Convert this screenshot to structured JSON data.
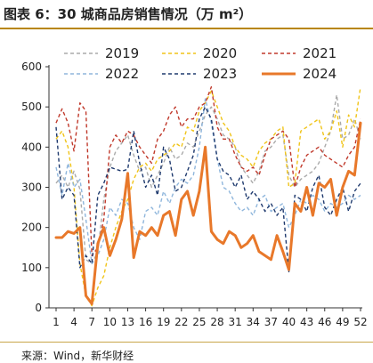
{
  "figure": {
    "title": "图表 6：30 城商品房销售情况（万 m²）",
    "source": "来源：Wind，新华财经"
  },
  "chart_data": {
    "type": "line",
    "title": "",
    "xlabel": "",
    "ylabel": "",
    "x": [
      1,
      2,
      3,
      4,
      5,
      6,
      7,
      8,
      9,
      10,
      11,
      12,
      13,
      14,
      15,
      16,
      17,
      18,
      19,
      20,
      21,
      22,
      23,
      24,
      25,
      26,
      27,
      28,
      29,
      30,
      31,
      32,
      33,
      34,
      35,
      36,
      37,
      38,
      39,
      40,
      41,
      42,
      43,
      44,
      45,
      46,
      47,
      48,
      49,
      50,
      51,
      52
    ],
    "x_ticks": [
      1,
      4,
      7,
      10,
      13,
      16,
      19,
      22,
      25,
      28,
      31,
      34,
      37,
      40,
      43,
      46,
      49,
      52
    ],
    "y_ticks": [
      0,
      100,
      200,
      300,
      400,
      500,
      600
    ],
    "xlim": [
      1,
      52
    ],
    "ylim": [
      0,
      600
    ],
    "grid": false,
    "legend_position": "top",
    "series": [
      {
        "name": "2019",
        "color": "#aaaaaa",
        "style": "dashed",
        "width": 1.4,
        "values": [
          310,
          330,
          300,
          340,
          295,
          120,
          110,
          140,
          270,
          350,
          390,
          410,
          430,
          380,
          340,
          350,
          300,
          330,
          360,
          400,
          370,
          380,
          410,
          400,
          440,
          480,
          500,
          470,
          430,
          420,
          400,
          350,
          330,
          310,
          340,
          390,
          400,
          420,
          430,
          330,
          300,
          320,
          330,
          340,
          360,
          400,
          440,
          530,
          420,
          430,
          470,
          420
        ]
      },
      {
        "name": "2020",
        "color": "#f0c419",
        "style": "dashed",
        "width": 1.4,
        "values": [
          420,
          440,
          400,
          300,
          110,
          30,
          5,
          50,
          80,
          150,
          200,
          240,
          270,
          320,
          350,
          360,
          340,
          370,
          380,
          390,
          410,
          400,
          450,
          440,
          490,
          510,
          540,
          500,
          460,
          440,
          400,
          380,
          370,
          350,
          390,
          410,
          420,
          440,
          450,
          300,
          310,
          440,
          450,
          460,
          470,
          420,
          440,
          490,
          400,
          480,
          450,
          550
        ]
      },
      {
        "name": "2021",
        "color": "#c0392b",
        "style": "dashed",
        "width": 1.4,
        "values": [
          460,
          495,
          460,
          390,
          510,
          490,
          130,
          150,
          220,
          400,
          430,
          410,
          440,
          430,
          400,
          380,
          360,
          420,
          440,
          480,
          500,
          450,
          470,
          470,
          500,
          510,
          550,
          450,
          420,
          420,
          380,
          350,
          340,
          350,
          330,
          380,
          420,
          430,
          440,
          420,
          300,
          350,
          380,
          390,
          400,
          380,
          370,
          360,
          350,
          380,
          400,
          470
        ]
      },
      {
        "name": "2022",
        "color": "#8fb6dc",
        "style": "dashed",
        "width": 1.4,
        "values": [
          350,
          280,
          360,
          300,
          320,
          220,
          110,
          130,
          170,
          250,
          230,
          270,
          260,
          200,
          170,
          240,
          250,
          230,
          290,
          260,
          300,
          320,
          310,
          330,
          400,
          520,
          460,
          370,
          300,
          290,
          260,
          240,
          250,
          230,
          270,
          280,
          240,
          250,
          260,
          200,
          230,
          270,
          260,
          280,
          270,
          240,
          260,
          250,
          260,
          280,
          270,
          280
        ]
      },
      {
        "name": "2023",
        "color": "#1f3a6e",
        "style": "dashed",
        "width": 1.4,
        "values": [
          450,
          270,
          300,
          280,
          100,
          130,
          110,
          280,
          310,
          350,
          345,
          340,
          345,
          440,
          360,
          300,
          330,
          280,
          400,
          370,
          290,
          300,
          340,
          380,
          470,
          500,
          470,
          370,
          340,
          330,
          300,
          330,
          270,
          290,
          270,
          240,
          260,
          230,
          250,
          90,
          280,
          270,
          240,
          300,
          330,
          250,
          230,
          270,
          300,
          240,
          290,
          310
        ]
      },
      {
        "name": "2024",
        "color": "#e8782a",
        "style": "solid",
        "width": 3,
        "values": [
          175,
          175,
          190,
          185,
          200,
          30,
          10,
          160,
          200,
          130,
          170,
          220,
          335,
          125,
          190,
          180,
          200,
          180,
          230,
          240,
          180,
          270,
          290,
          230,
          290,
          400,
          190,
          170,
          160,
          190,
          180,
          150,
          160,
          180,
          140,
          130,
          120,
          180,
          140,
          95,
          260,
          240,
          300,
          230,
          310,
          300,
          320,
          230,
          300,
          340,
          330,
          460
        ]
      }
    ]
  }
}
